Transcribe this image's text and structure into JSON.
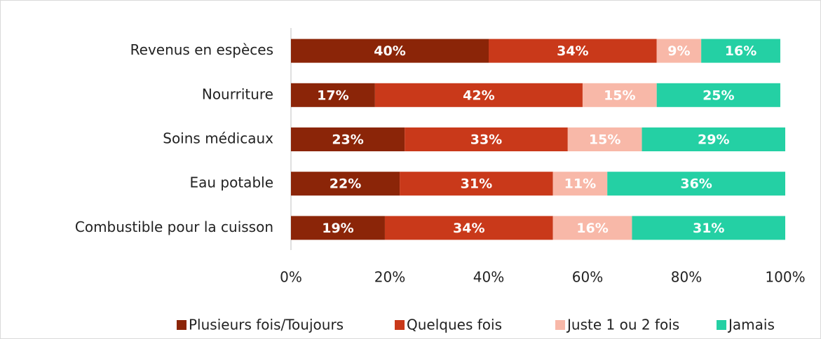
{
  "chart_data": {
    "type": "bar",
    "orientation": "horizontal",
    "stacked": true,
    "categories": [
      "Revenus en espèces",
      "Nourriture",
      "Soins médicaux",
      "Eau potable",
      "Combustible pour la cuisson"
    ],
    "series": [
      {
        "name": "Plusieurs fois/Toujours",
        "color": "#8b2508",
        "values": [
          40,
          17,
          23,
          22,
          19
        ],
        "value_labels": [
          "40%",
          "17%",
          "23%",
          "22%",
          "19%"
        ]
      },
      {
        "name": "Quelques fois",
        "color": "#c9391a",
        "values": [
          34,
          42,
          33,
          31,
          34
        ],
        "value_labels": [
          "34%",
          "42%",
          "33%",
          "31%",
          "34%"
        ]
      },
      {
        "name": "Juste 1 ou 2 fois",
        "color": "#f8b8a8",
        "values": [
          9,
          15,
          15,
          11,
          16
        ],
        "value_labels": [
          "9%",
          "15%",
          "15%",
          "11%",
          "16%"
        ]
      },
      {
        "name": "Jamais",
        "color": "#24d0a4",
        "values": [
          16,
          25,
          29,
          36,
          31
        ],
        "value_labels": [
          "16%",
          "25%",
          "29%",
          "36%",
          "31%"
        ]
      }
    ],
    "xlim": [
      0,
      100
    ],
    "xticks": [
      {
        "value": 0,
        "label": "0%"
      },
      {
        "value": 20,
        "label": "20%"
      },
      {
        "value": 40,
        "label": "40%"
      },
      {
        "value": 60,
        "label": "60%"
      },
      {
        "value": 80,
        "label": "80%"
      },
      {
        "value": 100,
        "label": "100%"
      }
    ],
    "legend": "bottom"
  }
}
